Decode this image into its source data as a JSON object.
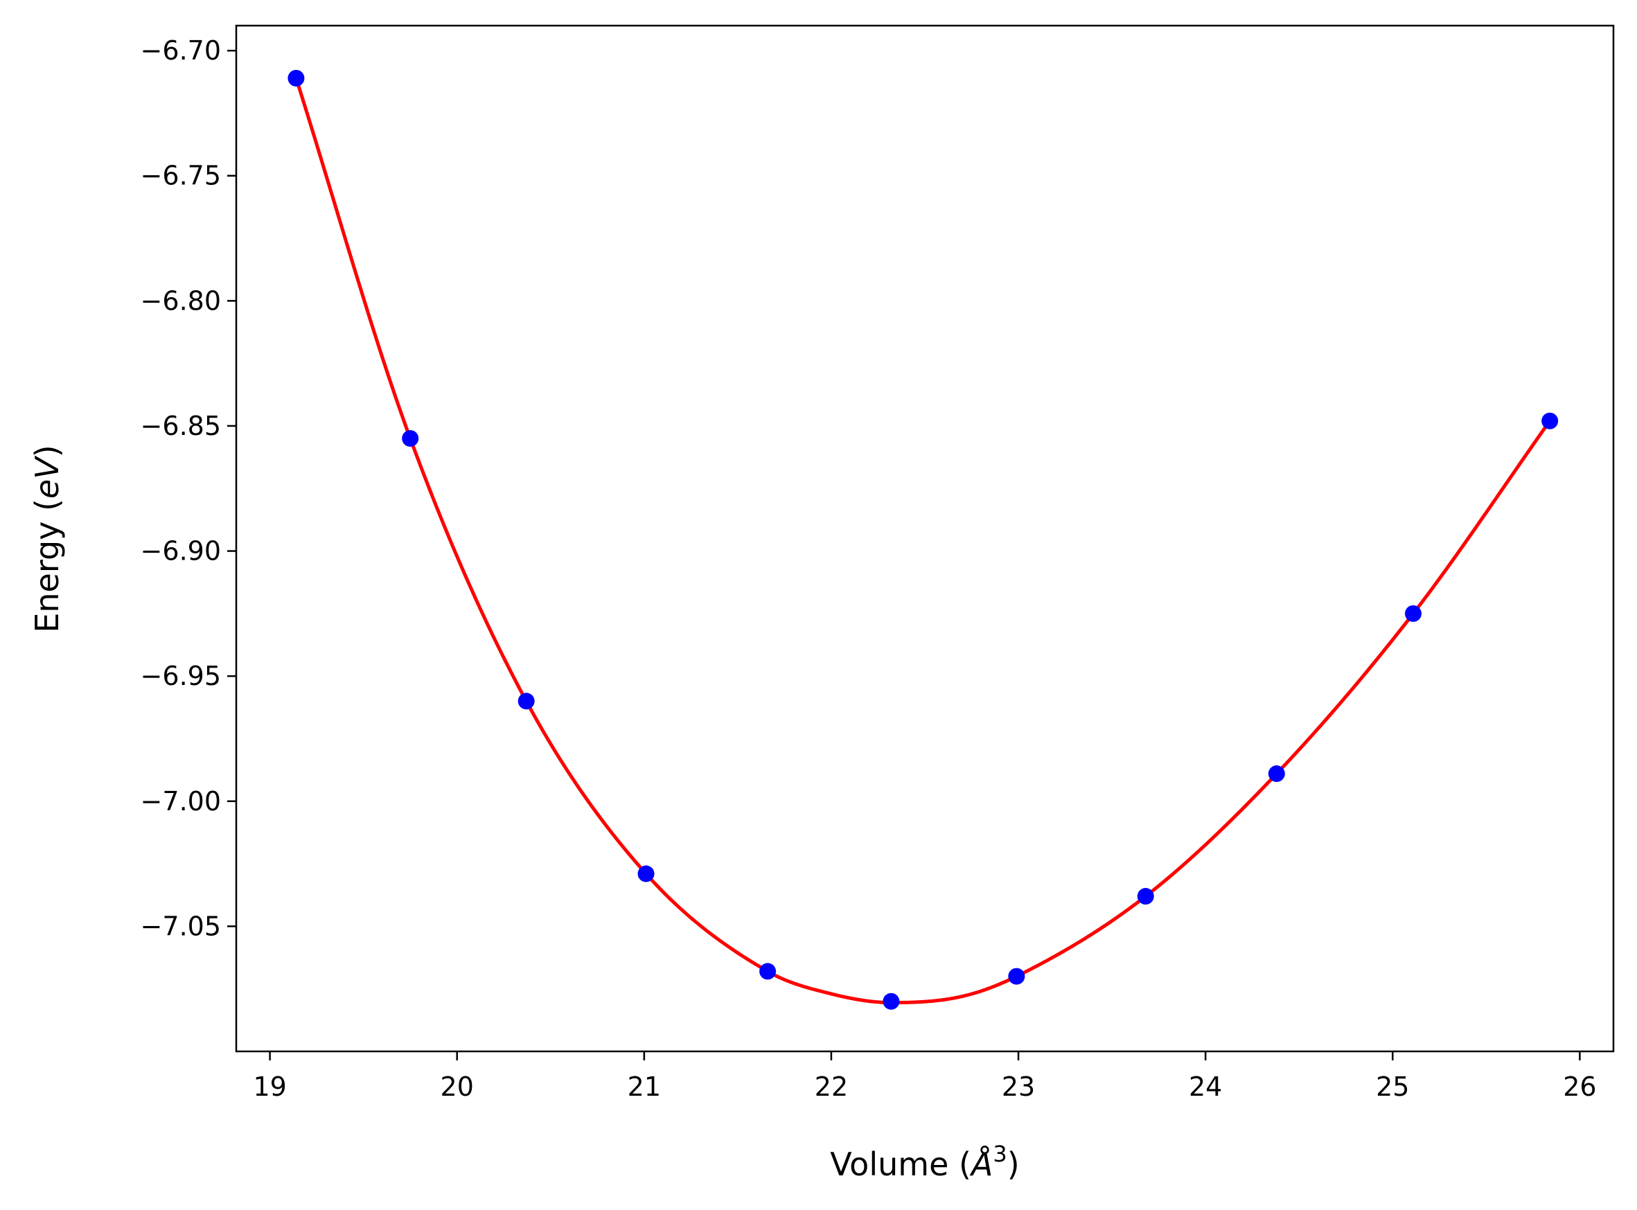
{
  "chart_data": {
    "type": "scatter",
    "xlabel": {
      "prefix": "Volume (",
      "symbol": "Å",
      "exponent": "3",
      "suffix": ")"
    },
    "ylabel": {
      "prefix": "Energy (",
      "symbol": "eV",
      "suffix": ")"
    },
    "xlim": [
      18.82,
      26.18
    ],
    "ylim": [
      -7.1,
      -6.69
    ],
    "xticks": [
      19,
      20,
      21,
      22,
      23,
      24,
      25,
      26
    ],
    "xtick_labels": [
      "19",
      "20",
      "21",
      "22",
      "23",
      "24",
      "25",
      "26"
    ],
    "yticks": [
      -6.7,
      -6.75,
      -6.8,
      -6.85,
      -6.9,
      -6.95,
      -7.0,
      -7.05
    ],
    "ytick_labels": [
      "−6.70",
      "−6.75",
      "−6.80",
      "−6.85",
      "−6.90",
      "−6.95",
      "−7.00",
      "−7.05"
    ],
    "grid": false,
    "series": [
      {
        "kind": "points",
        "color": "#0000ff",
        "x": [
          19.14,
          19.75,
          20.37,
          21.01,
          21.66,
          22.32,
          22.99,
          23.68,
          24.38,
          25.11,
          25.84
        ],
        "y": [
          -6.711,
          -6.855,
          -6.96,
          -7.029,
          -7.068,
          -7.08,
          -7.07,
          -7.038,
          -6.989,
          -6.925,
          -6.848
        ]
      },
      {
        "kind": "fit-line",
        "color": "#ff0000",
        "x": [
          19.14,
          19.75,
          20.37,
          21.01,
          21.66,
          22.0,
          22.32,
          22.7,
          22.99,
          23.68,
          24.38,
          25.11,
          25.84
        ],
        "y": [
          -6.711,
          -6.855,
          -6.96,
          -7.029,
          -7.068,
          -7.077,
          -7.0805,
          -7.078,
          -7.07,
          -7.038,
          -6.989,
          -6.925,
          -6.848
        ]
      }
    ]
  }
}
